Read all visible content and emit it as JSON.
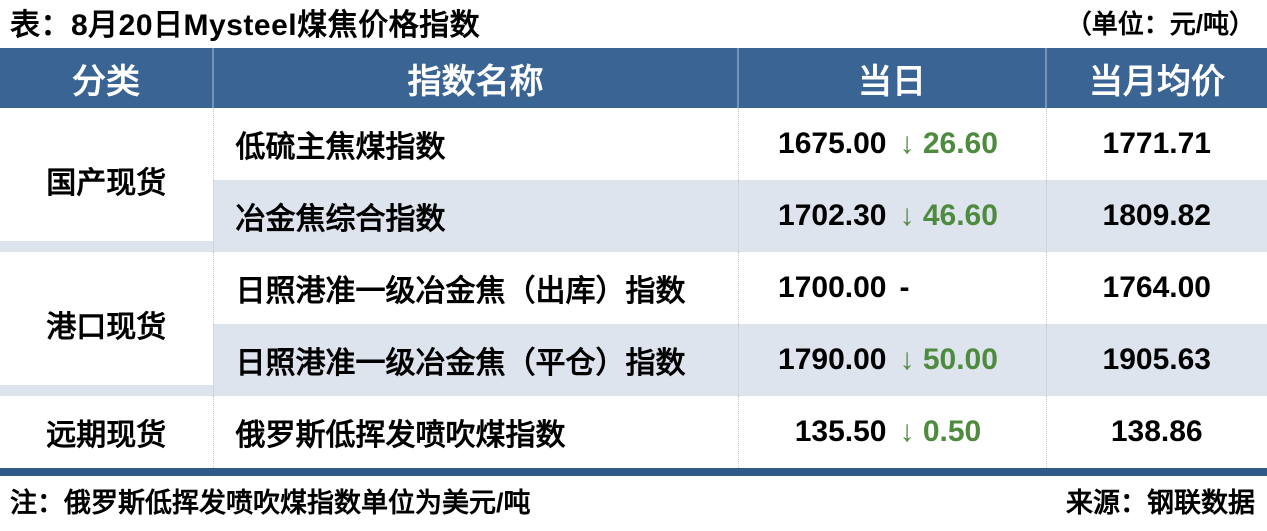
{
  "title": "表：8月20日Mysteel煤焦价格指数",
  "unit_label": "（单位：元/吨）",
  "table": {
    "headers": [
      "分类",
      "指数名称",
      "当日",
      "当月均价"
    ],
    "groups": [
      {
        "category": "国产现货",
        "rows": [
          {
            "name": "低硫主焦煤指数",
            "daily": "1675.00",
            "change": "↓ 26.60",
            "direction": "down",
            "month_avg": "1771.71"
          },
          {
            "name": "冶金焦综合指数",
            "daily": "1702.30",
            "change": "↓ 46.60",
            "direction": "down",
            "month_avg": "1809.82"
          }
        ]
      },
      {
        "category": "港口现货",
        "rows": [
          {
            "name": "日照港准一级冶金焦（出库）指数",
            "daily": "1700.00",
            "change": "-",
            "direction": "flat",
            "month_avg": "1764.00"
          },
          {
            "name": "日照港准一级冶金焦（平仓）指数",
            "daily": "1790.00",
            "change": "↓ 50.00",
            "direction": "down",
            "month_avg": "1905.63"
          }
        ]
      },
      {
        "category": "远期现货",
        "rows": [
          {
            "name": "俄罗斯低挥发喷吹煤指数",
            "daily": "135.50",
            "change": "↓ 0.50",
            "direction": "down",
            "month_avg": "138.86"
          }
        ]
      }
    ]
  },
  "footer": {
    "note": "注：俄罗斯低挥发喷吹煤指数单位为美元/吨",
    "source": "来源：钢联数据"
  },
  "icons": {
    "down_arrow": "↓"
  },
  "colors": {
    "header_bg": "#3a6494",
    "header_text": "#ffffff",
    "alt_row_bg": "#dde4ee",
    "down_green": "#4e8b3f",
    "bottom_bar": "#315a88",
    "body_text": "#000000"
  }
}
